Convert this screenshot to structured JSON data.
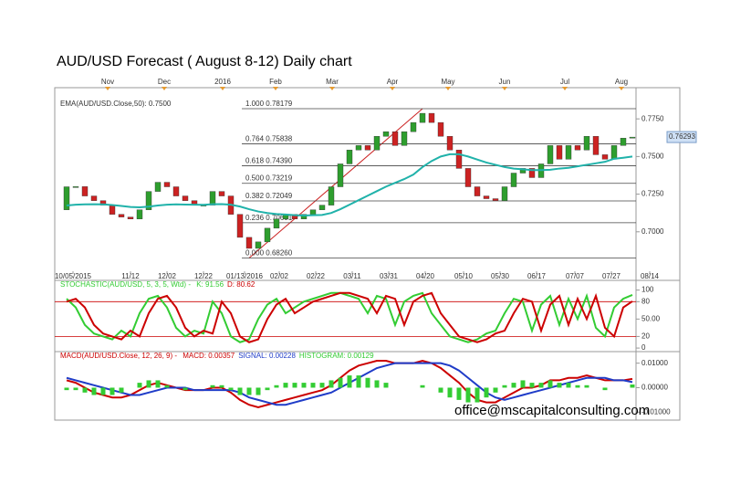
{
  "title": "AUD/USD Forecast ( August 8-12) Daily chart",
  "email": "office@mscapitalconsulting.com",
  "chart_data": [
    {
      "type": "candlestick",
      "x": [
        1,
        2,
        3,
        4,
        5,
        6,
        7,
        8,
        9,
        10,
        11,
        12,
        13,
        14,
        15,
        16,
        17,
        18,
        19,
        20,
        21,
        22,
        23,
        24,
        25,
        26,
        27,
        28,
        29,
        30,
        31,
        32,
        33,
        34,
        35,
        36,
        37,
        38,
        39,
        40,
        41,
        42,
        43,
        44,
        45,
        46,
        47,
        48,
        49,
        50,
        51,
        52,
        53,
        54,
        55,
        56,
        57,
        58,
        59,
        60,
        61,
        62,
        63
      ],
      "open": [
        0.7146,
        0.7299,
        0.73,
        0.7238,
        0.7207,
        0.7177,
        0.7116,
        0.7098,
        0.7085,
        0.7146,
        0.7268,
        0.7329,
        0.7299,
        0.7238,
        0.7207,
        0.7177,
        0.7177,
        0.7268,
        0.7238,
        0.7116,
        0.6963,
        0.689,
        0.6933,
        0.7024,
        0.7085,
        0.7116,
        0.7085,
        0.7116,
        0.7146,
        0.7177,
        0.7299,
        0.7451,
        0.7543,
        0.7573,
        0.7543,
        0.7634,
        0.7665,
        0.7573,
        0.7665,
        0.7726,
        0.7787,
        0.7726,
        0.7634,
        0.7543,
        0.7421,
        0.7299,
        0.7238,
        0.722,
        0.7207,
        0.7299,
        0.739,
        0.7421,
        0.736,
        0.7451,
        0.7573,
        0.7482,
        0.7573,
        0.7543,
        0.7634,
        0.7512,
        0.7482,
        0.7573,
        0.7622
      ],
      "close": [
        0.7299,
        0.73,
        0.7238,
        0.7207,
        0.7177,
        0.7116,
        0.7098,
        0.7085,
        0.7146,
        0.7268,
        0.7329,
        0.7299,
        0.7238,
        0.7207,
        0.7177,
        0.7177,
        0.7268,
        0.7238,
        0.7116,
        0.6963,
        0.689,
        0.6933,
        0.7024,
        0.7085,
        0.7116,
        0.7085,
        0.7116,
        0.7146,
        0.7177,
        0.7299,
        0.7451,
        0.7543,
        0.7573,
        0.7543,
        0.7634,
        0.7665,
        0.7573,
        0.7665,
        0.7726,
        0.7787,
        0.7726,
        0.7634,
        0.7543,
        0.7421,
        0.7299,
        0.7238,
        0.722,
        0.7207,
        0.7299,
        0.739,
        0.7421,
        0.736,
        0.7451,
        0.7573,
        0.7482,
        0.7573,
        0.7543,
        0.7634,
        0.7512,
        0.7482,
        0.7573,
        0.7622,
        0.7629
      ],
      "up_color": "#2e9e2e",
      "down_color": "#cc2222",
      "ema": {
        "name": "EMA(AUD/USD.Close,50): 0.7500",
        "color": "#20b2aa",
        "values": [
          0.7175,
          0.718,
          0.7182,
          0.7183,
          0.7182,
          0.7178,
          0.7172,
          0.7165,
          0.7163,
          0.7167,
          0.7175,
          0.718,
          0.7182,
          0.7181,
          0.718,
          0.7179,
          0.7183,
          0.7184,
          0.718,
          0.7168,
          0.715,
          0.7135,
          0.7125,
          0.7118,
          0.7115,
          0.711,
          0.7108,
          0.711,
          0.7112,
          0.7125,
          0.715,
          0.718,
          0.721,
          0.724,
          0.727,
          0.73,
          0.7325,
          0.735,
          0.738,
          0.743,
          0.747,
          0.75,
          0.7515,
          0.7515,
          0.75,
          0.748,
          0.746,
          0.7445,
          0.743,
          0.742,
          0.7415,
          0.741,
          0.741,
          0.7412,
          0.742,
          0.7425,
          0.7435,
          0.7445,
          0.7455,
          0.7465,
          0.7485,
          0.7492,
          0.75
        ]
      },
      "fib_color": "#cc2222",
      "fib_levels": [
        {
          "ratio": "1.000",
          "price": {
            "value": 0.78179,
            "label": "0.78179"
          }
        },
        {
          "ratio": "0.764",
          "price": {
            "value": 0.75838,
            "label": "0.75838"
          }
        },
        {
          "ratio": "0.618",
          "price": {
            "value": 0.7439,
            "label": "0.74390"
          }
        },
        {
          "ratio": "0.500",
          "price": {
            "value": 0.73219,
            "label": "0.73219"
          }
        },
        {
          "ratio": "0.382",
          "price": {
            "value": 0.72049,
            "label": "0.72049"
          }
        },
        {
          "ratio": "0.236",
          "price": {
            "value": 0.70601,
            "label": "0.70601"
          }
        },
        {
          "ratio": "0.000",
          "price": {
            "value": 0.6826,
            "label": "0.68260"
          }
        }
      ],
      "last_price": 0.76293,
      "xlim": [
        0,
        63.4
      ],
      "xticks": [
        {
          "value": 1.7,
          "label": "10/05/2015"
        },
        {
          "value": 8,
          "label": "11/12"
        },
        {
          "value": 12,
          "label": "12/02"
        },
        {
          "value": 16,
          "label": "12/22"
        },
        {
          "value": 20.5,
          "label": "01/13/2016"
        },
        {
          "value": 24.3,
          "label": "02/02"
        },
        {
          "value": 28.3,
          "label": "02/22"
        },
        {
          "value": 32.3,
          "label": "03/11"
        },
        {
          "value": 36.3,
          "label": "03/31"
        },
        {
          "value": 40.3,
          "label": "04/20"
        },
        {
          "value": 44.5,
          "label": "05/10"
        },
        {
          "value": 48.5,
          "label": "05/30"
        },
        {
          "value": 52.5,
          "label": "06/17"
        },
        {
          "value": 56.7,
          "label": "07/07"
        },
        {
          "value": 60.7,
          "label": "07/27"
        },
        {
          "value": 64.9,
          "label": "08/14"
        }
      ],
      "top_xticks": [
        {
          "value": 5.5,
          "label": "Nov"
        },
        {
          "value": 11.7,
          "label": "Dec"
        },
        {
          "value": 18.1,
          "label": "2016"
        },
        {
          "value": 23.9,
          "label": "Feb"
        },
        {
          "value": 30.1,
          "label": "Mar"
        },
        {
          "value": 36.7,
          "label": "Apr"
        },
        {
          "value": 42.8,
          "label": "May"
        },
        {
          "value": 49,
          "label": "Jun"
        },
        {
          "value": 55.6,
          "label": "Jul"
        },
        {
          "value": 61.8,
          "label": "Aug"
        }
      ],
      "ylim": [
        0.6738,
        0.7933
      ],
      "yticks": [
        {
          "value": 0.775,
          "label": "0.7750"
        },
        {
          "value": 0.75,
          "label": "0.7500"
        },
        {
          "value": 0.725,
          "label": "0.7250"
        },
        {
          "value": 0.7,
          "label": "0.7000"
        }
      ]
    },
    {
      "type": "line",
      "label": "STOCHASTIC(AUD/USD, 5, 3, 5, Wtd) - ",
      "series": [
        {
          "name": "K: 91.56",
          "color": "#33cc33",
          "values": [
            85,
            70,
            40,
            25,
            20,
            15,
            30,
            20,
            60,
            85,
            90,
            70,
            35,
            20,
            30,
            25,
            80,
            60,
            20,
            10,
            15,
            50,
            75,
            85,
            60,
            70,
            80,
            85,
            90,
            95,
            95,
            90,
            85,
            60,
            90,
            85,
            40,
            80,
            90,
            95,
            60,
            40,
            20,
            15,
            10,
            15,
            25,
            30,
            60,
            85,
            80,
            30,
            75,
            90,
            40,
            85,
            50,
            90,
            35,
            20,
            70,
            85,
            91.56
          ]
        },
        {
          "name": "D: 80.62",
          "color": "#cc0000",
          "values": [
            80,
            85,
            70,
            40,
            25,
            20,
            15,
            30,
            20,
            60,
            85,
            90,
            70,
            35,
            20,
            30,
            25,
            80,
            60,
            20,
            10,
            15,
            50,
            75,
            85,
            60,
            70,
            80,
            85,
            90,
            95,
            95,
            90,
            85,
            60,
            90,
            85,
            40,
            80,
            90,
            95,
            60,
            40,
            20,
            15,
            10,
            15,
            25,
            30,
            60,
            85,
            80,
            30,
            75,
            90,
            40,
            85,
            50,
            90,
            35,
            20,
            70,
            80.62
          ]
        }
      ],
      "levels": [
        80,
        20
      ],
      "level_color": "#cc0000",
      "ylim": [
        -3,
        112
      ],
      "yticks": [
        100,
        80,
        {
          "value": 50,
          "label": "50.00"
        },
        20,
        0
      ]
    },
    {
      "type": "line",
      "label": "MACD(AUD/USD.Close, 12, 26, 9) - ",
      "series": [
        {
          "name": "MACD: 0.00357",
          "color": "#cc0000",
          "values": [
            0.003,
            0.002,
            0,
            -0.002,
            -0.003,
            -0.004,
            -0.004,
            -0.003,
            -0.001,
            0.001,
            0.002,
            0.001,
            0,
            -0.001,
            -0.001,
            -0.001,
            0,
            0,
            -0.002,
            -0.005,
            -0.007,
            -0.008,
            -0.007,
            -0.006,
            -0.005,
            -0.004,
            -0.003,
            -0.002,
            -0.001,
            0.001,
            0.004,
            0.007,
            0.009,
            0.01,
            0.011,
            0.011,
            0.01,
            0.01,
            0.01,
            0.011,
            0.01,
            0.008,
            0.005,
            0.002,
            -0.002,
            -0.005,
            -0.006,
            -0.006,
            -0.004,
            -0.002,
            0,
            0,
            0.001,
            0.003,
            0.003,
            0.004,
            0.004,
            0.005,
            0.004,
            0.003,
            0.003,
            0.003,
            0.00357
          ]
        },
        {
          "name": "SIGNAL: 0.00228",
          "color": "#1f3cc8",
          "values": [
            0.004,
            0.003,
            0.002,
            0.001,
            0,
            -0.001,
            -0.002,
            -0.003,
            -0.003,
            -0.002,
            -0.001,
            0,
            0,
            0,
            -0.001,
            -0.001,
            -0.001,
            -0.001,
            -0.001,
            -0.002,
            -0.004,
            -0.005,
            -0.006,
            -0.007,
            -0.007,
            -0.006,
            -0.005,
            -0.004,
            -0.003,
            -0.002,
            0,
            0.002,
            0.004,
            0.006,
            0.008,
            0.009,
            0.01,
            0.01,
            0.01,
            0.01,
            0.01,
            0.01,
            0.009,
            0.007,
            0.004,
            0.001,
            -0.002,
            -0.004,
            -0.005,
            -0.004,
            -0.003,
            -0.002,
            -0.001,
            0,
            0.001,
            0.002,
            0.003,
            0.004,
            0.004,
            0.004,
            0.003,
            0.003,
            0.00228
          ]
        },
        {
          "name": "HISTOGRAM: 0.00129",
          "color": "#33cc33",
          "style": "bar",
          "values": [
            -0.001,
            -0.001,
            -0.002,
            -0.003,
            -0.003,
            -0.003,
            -0.002,
            0,
            0.002,
            0.003,
            0.003,
            0.001,
            0,
            -0.001,
            0,
            0,
            0.001,
            0.001,
            -0.001,
            -0.003,
            -0.003,
            -0.003,
            -0.001,
            0.001,
            0.002,
            0.002,
            0.002,
            0.002,
            0.002,
            0.003,
            0.004,
            0.005,
            0.005,
            0.004,
            0.003,
            0.002,
            0,
            0,
            0,
            0.001,
            0,
            -0.002,
            -0.004,
            -0.005,
            -0.006,
            -0.006,
            -0.004,
            -0.002,
            0.001,
            0.002,
            0.003,
            0.002,
            0.002,
            0.003,
            0.002,
            0.002,
            0.001,
            0.001,
            0,
            -0.001,
            0,
            0,
            0.00129
          ]
        }
      ],
      "ylim": [
        -0.0125,
        0.0136
      ],
      "yticks": [
        {
          "value": 0.01,
          "label": "0.01000"
        },
        {
          "value": 0,
          "label": "0.00000"
        },
        {
          "value": -0.01,
          "label": "-0.01000"
        }
      ]
    }
  ]
}
